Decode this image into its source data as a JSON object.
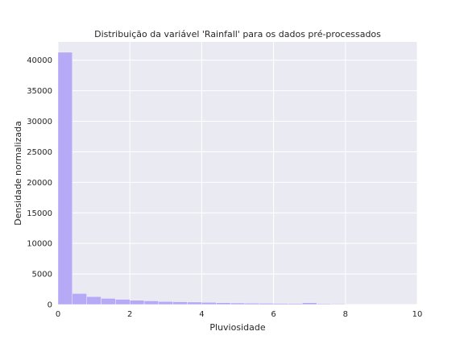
{
  "chart_data": {
    "type": "bar",
    "title": "Distribuição da variável 'Rainfall' para os dados pré-processados",
    "xlabel": "Pluviosidade",
    "ylabel": "Densidade normalizada",
    "xlim": [
      0,
      10
    ],
    "ylim": [
      0,
      43000
    ],
    "x_ticks": [
      0,
      2,
      4,
      6,
      8,
      10
    ],
    "y_ticks": [
      0,
      5000,
      10000,
      15000,
      20000,
      25000,
      30000,
      35000,
      40000
    ],
    "bin_width": 0.4,
    "bin_starts": [
      0.0,
      0.4,
      0.8,
      1.2,
      1.6,
      2.0,
      2.4,
      2.8,
      3.2,
      3.6,
      4.0,
      4.4,
      4.8,
      5.2,
      5.6,
      6.0,
      6.4,
      6.8,
      7.2,
      7.6
    ],
    "values": [
      41300,
      1800,
      1300,
      1000,
      850,
      700,
      600,
      500,
      450,
      400,
      350,
      300,
      260,
      220,
      200,
      180,
      150,
      300,
      130,
      110
    ],
    "grid": true,
    "colors": {
      "bar": "#b6a9f5",
      "plot_background": "#eaeaf2",
      "grid": "#ffffff",
      "text": "#262626"
    }
  }
}
